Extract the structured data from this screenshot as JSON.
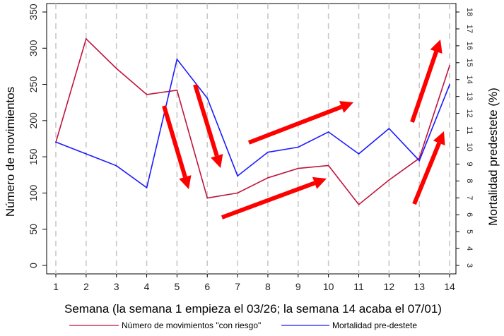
{
  "chart_data": {
    "type": "line",
    "xlabel": "Semana (la semana 1 empieza el 03/26; la semana 14 acaba el 07/01)",
    "ylabel": "Número de movimientos",
    "ylabel_right": "Mortalidad predestete (%)",
    "x": [
      1,
      2,
      3,
      4,
      5,
      6,
      7,
      8,
      9,
      10,
      11,
      12,
      13,
      14
    ],
    "x_tick_labels": [
      "1",
      "2",
      "3",
      "4",
      "5",
      "6",
      "7",
      "8",
      "9",
      "10",
      "11",
      "12",
      "13",
      "14"
    ],
    "ylim": [
      0,
      350
    ],
    "y_ticks": [
      0,
      50,
      100,
      150,
      200,
      250,
      300,
      350
    ],
    "y_tick_labels": [
      "0",
      "50",
      "100",
      "150",
      "200",
      "250",
      "300",
      "350"
    ],
    "ylim_right": [
      3,
      18
    ],
    "y_ticks_right": [
      3,
      4,
      5,
      6,
      7,
      8,
      9,
      10,
      11,
      12,
      13,
      14,
      15,
      16,
      17,
      18
    ],
    "y_tick_labels_right": [
      "3",
      "4",
      "5",
      "6",
      "7",
      "8",
      "9",
      "10",
      "11",
      "12",
      "13",
      "14",
      "15",
      "16",
      "17",
      "18"
    ],
    "grid": "vertical dashed",
    "legend_position": "bottom",
    "series": [
      {
        "name": "Número de movimientos \"con riesgo\"",
        "axis": "left",
        "color": "#c0143c",
        "values": [
          170,
          313,
          272,
          236,
          242,
          93,
          100,
          121,
          134,
          138,
          84,
          118,
          148,
          276
        ]
      },
      {
        "name": "Mortalidad pre-destete",
        "axis": "right",
        "color": "#1a1aff",
        "values": [
          10.3,
          9.6,
          8.9,
          7.6,
          15.2,
          12.9,
          8.3,
          9.7,
          10.0,
          10.9,
          9.6,
          11.1,
          9.2,
          13.7
        ]
      }
    ],
    "annotations": {
      "type": "arrows",
      "color": "#ff0000",
      "count": 8
    }
  }
}
